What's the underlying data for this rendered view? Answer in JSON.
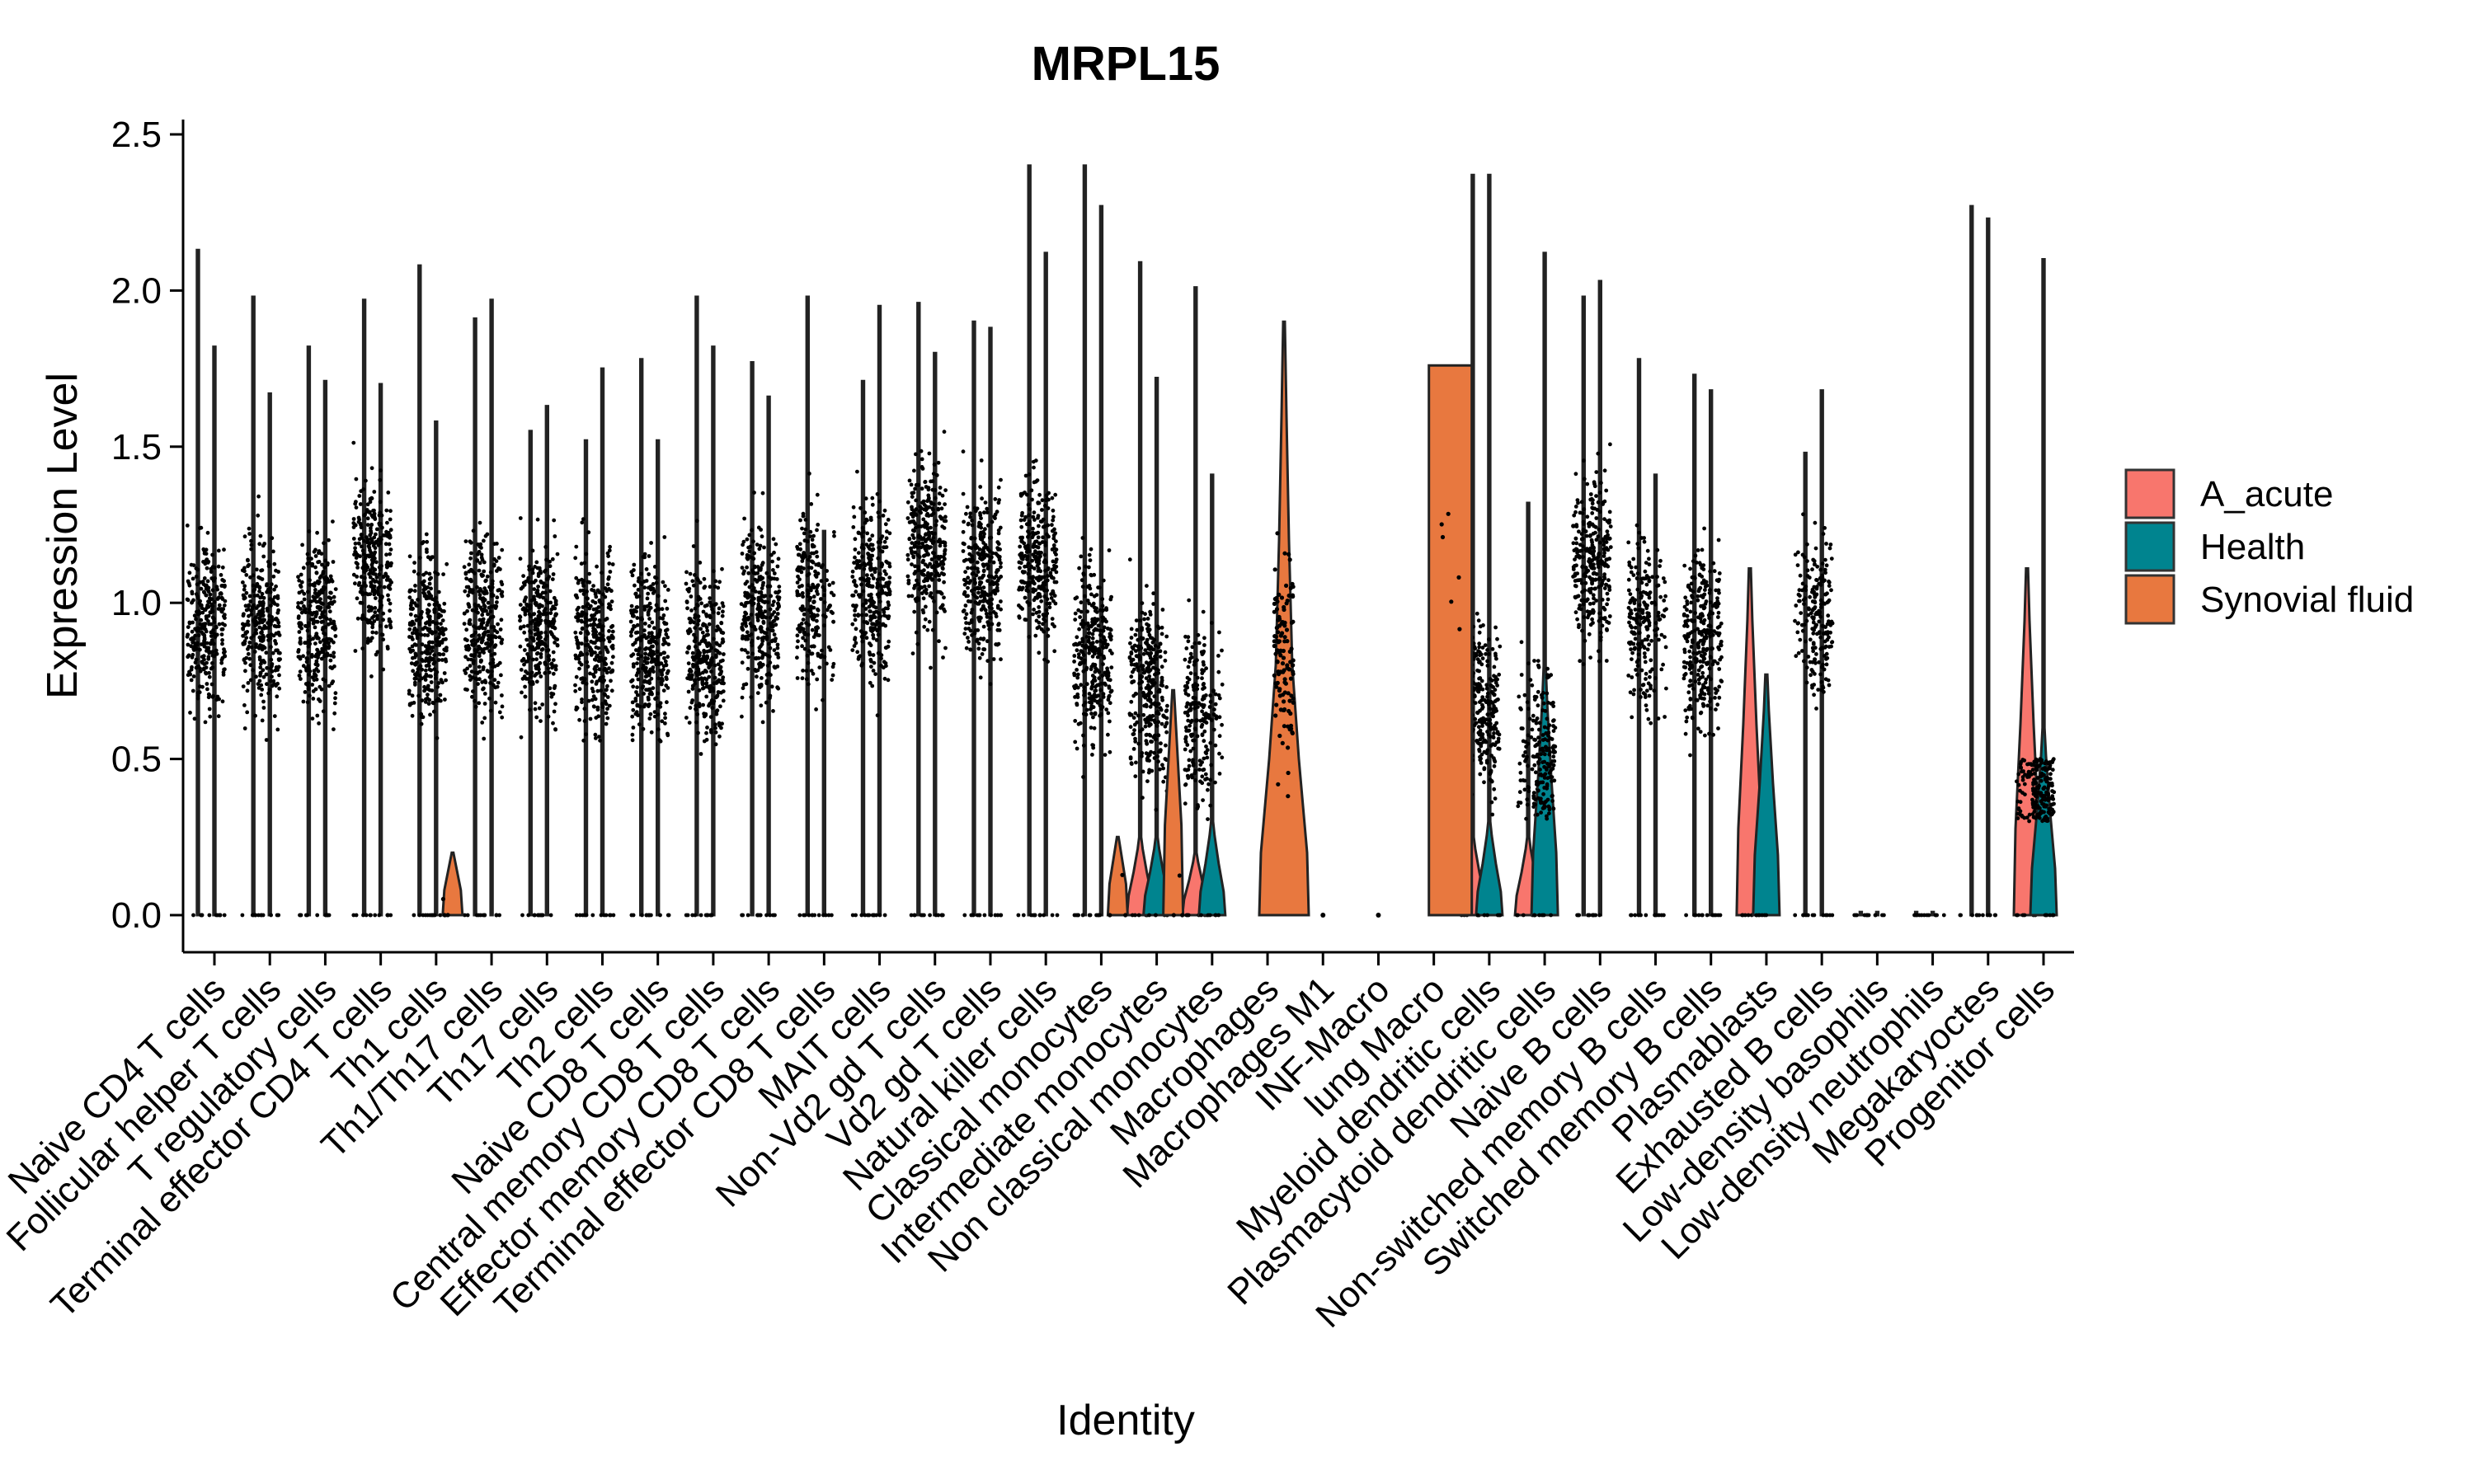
{
  "chart_data": {
    "type": "violin",
    "title": "MRPL15",
    "xlabel": "Identity",
    "ylabel": "Expression Level",
    "ylim": [
      -0.1,
      2.55
    ],
    "yticks": [
      0.0,
      0.5,
      1.0,
      1.5,
      2.0,
      2.5
    ],
    "ytick_labels": [
      "0.0",
      "0.5",
      "1.0",
      "1.5",
      "2.0",
      "2.5"
    ],
    "grid": false,
    "legend_position": "right",
    "legend": [
      {
        "name": "A_acute",
        "color": "#F8766D"
      },
      {
        "name": "Health",
        "color": "#00848F"
      },
      {
        "name": "Synovial fluid",
        "color": "#E8783F"
      }
    ],
    "categories": [
      "Naive CD4 T cells",
      "Follicular helper T cells",
      "T regulatory cells",
      "Terminal effector CD4 T cells",
      "Th1 cells",
      "Th1/Th17 cells",
      "Th17 cells",
      "Th2 cells",
      "Naive CD8 T cells",
      "Central memory CD8 T cells",
      "Effector memory CD8 T cells",
      "Terminal effector CD8 T cells",
      "MAIT cells",
      "Non-Vd2 gd T cells",
      "Vd2 gd T cells",
      "Natural killer cells",
      "Classical monocytes",
      "Intermediate monocytes",
      "Non classical monocytes",
      "Macrophages",
      "Macrophages M1",
      "INF-Macro",
      "lung Macro",
      "Myeloid dendritic cells",
      "Plasmacytoid dendritic cells",
      "Naive B cells",
      "Non-switched memory B cells",
      "Switched memory B cells",
      "Plasmablasts",
      "Exhausted B cells",
      "Low-density basophils",
      "Low-density neutrophils",
      "Megakaryoctes",
      "Progenitor cells"
    ],
    "series": [
      {
        "name": "A_acute",
        "color": "#F8766D",
        "max": [
          2.13,
          1.98,
          1.82,
          1.97,
          2.08,
          1.91,
          1.55,
          1.52,
          1.78,
          1.98,
          1.77,
          1.98,
          1.71,
          1.96,
          1.9,
          2.4,
          2.4,
          2.09,
          2.01,
          0,
          0,
          0,
          0,
          2.37,
          1.32,
          1.98,
          1.78,
          1.73,
          1.11,
          1.48,
          0.01,
          0.01,
          2.27,
          1.11
        ],
        "median": [
          0.93,
          0.95,
          0.92,
          1.12,
          0.88,
          0.95,
          0.92,
          0.9,
          0.88,
          0.85,
          0.97,
          1.03,
          1.05,
          1.2,
          1.1,
          1.15,
          0.85,
          0.75,
          0.65,
          0,
          0,
          0,
          0,
          0.7,
          0.55,
          1.15,
          0.95,
          0.9,
          0.0,
          0.95,
          0,
          0,
          0,
          0.05
        ],
        "zero_violin": [
          false,
          false,
          false,
          false,
          false,
          false,
          false,
          false,
          false,
          false,
          false,
          false,
          false,
          false,
          false,
          false,
          false,
          true,
          true,
          false,
          false,
          false,
          false,
          true,
          true,
          false,
          false,
          false,
          true,
          false,
          false,
          false,
          false,
          true
        ],
        "violin_top": [
          0,
          0,
          0,
          0,
          0,
          0,
          0,
          0,
          0,
          0,
          0,
          0,
          0,
          0,
          0,
          0,
          0,
          0.25,
          0.2,
          0,
          0,
          0,
          0,
          0.25,
          0.25,
          0,
          0,
          0,
          1.11,
          0,
          0,
          0,
          0,
          1.11
        ]
      },
      {
        "name": "Health",
        "color": "#00848F",
        "max": [
          1.82,
          1.67,
          1.71,
          1.7,
          1.58,
          1.97,
          1.63,
          1.75,
          1.52,
          1.82,
          1.66,
          1.23,
          1.95,
          1.8,
          1.88,
          2.12,
          2.27,
          1.72,
          1.41,
          0,
          0,
          0,
          0,
          2.37,
          2.12,
          2.03,
          1.41,
          1.68,
          0.77,
          1.68,
          0.01,
          0.01,
          2.23,
          2.1
        ],
        "median": [
          0.93,
          0.9,
          0.95,
          1.1,
          0.9,
          0.92,
          0.9,
          0.88,
          0.85,
          0.82,
          0.95,
          0.98,
          1.05,
          1.18,
          1.08,
          1.12,
          0.8,
          0.7,
          0.62,
          0,
          0,
          0,
          0,
          0.65,
          0.5,
          1.12,
          0.92,
          0.88,
          0.0,
          0.95,
          0,
          0,
          0,
          0.05
        ],
        "zero_violin": [
          false,
          false,
          false,
          false,
          false,
          false,
          false,
          false,
          false,
          false,
          false,
          false,
          false,
          false,
          false,
          false,
          false,
          true,
          true,
          false,
          false,
          false,
          false,
          true,
          true,
          false,
          false,
          false,
          true,
          false,
          false,
          false,
          false,
          true
        ],
        "violin_top": [
          0,
          0,
          0,
          0,
          0,
          0,
          0,
          0,
          0,
          0,
          0,
          0,
          0,
          0,
          0,
          0,
          0,
          0.25,
          0.3,
          0,
          0,
          0,
          0,
          0.3,
          0.8,
          0,
          0,
          0,
          0.77,
          0,
          0,
          0,
          0,
          0.6
        ]
      },
      {
        "name": "Synovial fluid",
        "color": "#E8783F",
        "max": [
          0,
          0,
          0,
          0,
          0.2,
          0,
          0,
          0,
          0,
          0,
          0,
          0,
          0,
          0,
          0,
          0,
          0.25,
          0.72,
          0,
          1.9,
          0,
          0,
          1.76,
          0,
          0,
          0,
          0,
          0,
          0,
          0,
          0,
          0,
          0,
          0
        ],
        "median": [
          0,
          0,
          0,
          0,
          0,
          0,
          0,
          0,
          0,
          0,
          0,
          0,
          0,
          0,
          0,
          0,
          0,
          0,
          0,
          0.85,
          0,
          0,
          1.0,
          0,
          0,
          0,
          0,
          0,
          0,
          0,
          0,
          0,
          0,
          0
        ],
        "present": [
          false,
          false,
          false,
          false,
          true,
          false,
          false,
          false,
          false,
          false,
          false,
          false,
          false,
          false,
          false,
          false,
          true,
          true,
          false,
          true,
          false,
          false,
          true,
          false,
          false,
          false,
          false,
          false,
          false,
          false,
          false,
          false,
          false,
          false
        ]
      }
    ]
  }
}
